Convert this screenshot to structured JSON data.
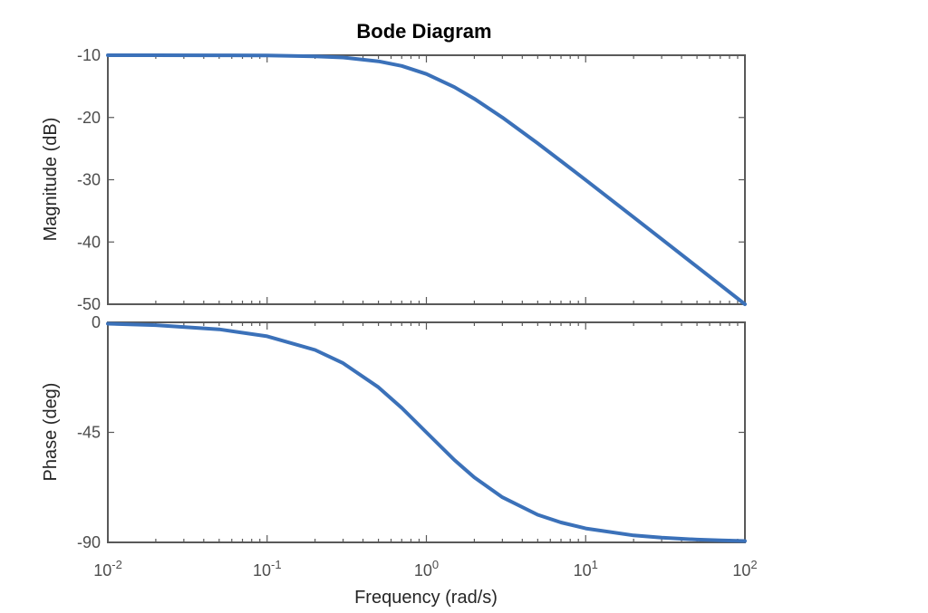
{
  "chart_data": {
    "type": "line",
    "title": "Bode Diagram",
    "xlabel": "Frequency  (rad/s)",
    "x_scale": "log",
    "xlim": [
      0.01,
      100
    ],
    "x_ticks": [
      {
        "value": 0.01,
        "base": "10",
        "exp": "-2"
      },
      {
        "value": 0.1,
        "base": "10",
        "exp": "-1"
      },
      {
        "value": 1,
        "base": "10",
        "exp": "0"
      },
      {
        "value": 10,
        "base": "10",
        "exp": "1"
      },
      {
        "value": 100,
        "base": "10",
        "exp": "2"
      }
    ],
    "panels": [
      {
        "ylabel": "Magnitude (dB)",
        "ylim": [
          -50,
          -10
        ],
        "y_ticks": [
          -10,
          -20,
          -30,
          -40,
          -50
        ],
        "series": [
          {
            "color": "#3b71b9",
            "x": [
              0.01,
              0.02,
              0.05,
              0.1,
              0.2,
              0.3,
              0.5,
              0.7,
              1,
              1.5,
              2,
              3,
              5,
              7,
              10,
              20,
              30,
              50,
              70,
              100
            ],
            "y": [
              -10,
              -10,
              -10.01,
              -10.04,
              -10.17,
              -10.37,
              -10.97,
              -11.71,
              -13.01,
              -15.12,
              -16.99,
              -20,
              -24.15,
              -27.0,
              -30.04,
              -36.02,
              -39.54,
              -43.98,
              -46.9,
              -50
            ]
          }
        ]
      },
      {
        "ylabel": "Phase (deg)",
        "ylim": [
          -90,
          0
        ],
        "y_ticks": [
          0,
          -45,
          -90
        ],
        "series": [
          {
            "color": "#3b71b9",
            "x": [
              0.01,
              0.02,
              0.05,
              0.1,
              0.2,
              0.3,
              0.5,
              0.7,
              1,
              1.5,
              2,
              3,
              5,
              7,
              10,
              20,
              30,
              50,
              70,
              100
            ],
            "y": [
              -0.57,
              -1.15,
              -2.86,
              -5.71,
              -11.31,
              -16.7,
              -26.57,
              -34.99,
              -45,
              -56.31,
              -63.43,
              -71.57,
              -78.69,
              -81.87,
              -84.29,
              -87.14,
              -88.09,
              -88.85,
              -89.18,
              -89.43
            ]
          }
        ]
      }
    ]
  }
}
